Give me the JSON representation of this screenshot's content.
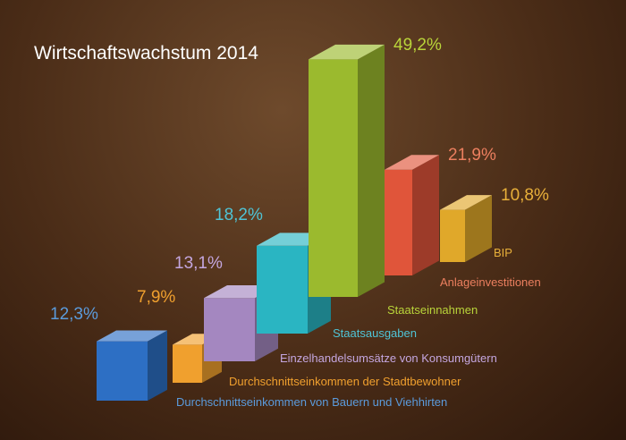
{
  "chart_data": {
    "type": "bar",
    "title": "Wirtschaftswachstum 2014",
    "unit": "%",
    "categories": [
      "Durchschnittseinkommen von Bauern und Viehhirten",
      "Durchschnittseinkommen der Stadtbewohner",
      "Einzelhandelsumsätze von Konsumgütern",
      "Staatsausgaben",
      "Staatseinnahmen",
      "Anlageinvestitionen",
      "BIP"
    ],
    "values": [
      12.3,
      7.9,
      13.1,
      18.2,
      49.2,
      21.9,
      10.8
    ],
    "value_labels": [
      "12,3%",
      "7,9%",
      "13,1%",
      "18,2%",
      "49,2%",
      "21,9%",
      "10,8%"
    ],
    "colors": [
      "#2d6fc4",
      "#f0a02e",
      "#a487c0",
      "#2ab5c2",
      "#9bba2e",
      "#e0553a",
      "#e0a82a"
    ],
    "label_colors": [
      "#5b9bdc",
      "#f0a02e",
      "#c4a6df",
      "#4fc4d6",
      "#b9d43a",
      "#ec7f5f",
      "#e8b03a"
    ],
    "title_color": "#ffffff",
    "grid": false,
    "legend": "none"
  }
}
